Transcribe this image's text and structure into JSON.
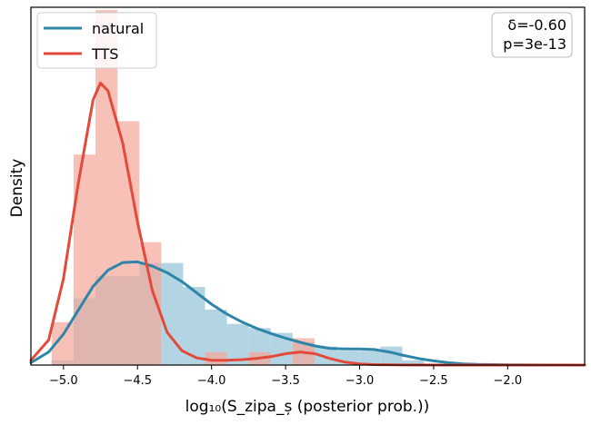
{
  "chart_data": {
    "type": "histogram+kde",
    "xlabel": "log₁₀(S_zipa_ș (posterior prob.))",
    "ylabel": "Density",
    "xlim": [
      -5.22,
      -1.48
    ],
    "ylim": [
      0,
      6.0
    ],
    "x_ticks": [
      -5.0,
      -4.5,
      -4.0,
      -3.5,
      -3.0,
      -2.5,
      -2.0
    ],
    "x_tick_labels": [
      "−5.0",
      "−4.5",
      "−4.0",
      "−3.5",
      "−3.0",
      "−2.5",
      "−2.0"
    ],
    "grid": false,
    "legend_position": "top-left",
    "annotation": {
      "lines": [
        "δ=-0.60",
        "p=3e-13"
      ],
      "position": "top-right"
    },
    "series": [
      {
        "name": "natural",
        "color": "#2e85a8",
        "hist_color": "#a9cfdf",
        "bin_width": 0.148,
        "hist": [
          {
            "x0": -5.08,
            "density": 0.08
          },
          {
            "x0": -4.932,
            "density": 1.12
          },
          {
            "x0": -4.784,
            "density": 1.49
          },
          {
            "x0": -4.636,
            "density": 1.49
          },
          {
            "x0": -4.488,
            "density": 1.71
          },
          {
            "x0": -4.34,
            "density": 1.71
          },
          {
            "x0": -4.192,
            "density": 1.31
          },
          {
            "x0": -4.044,
            "density": 0.93
          },
          {
            "x0": -3.896,
            "density": 0.69
          },
          {
            "x0": -3.748,
            "density": 0.62
          },
          {
            "x0": -3.6,
            "density": 0.54
          },
          {
            "x0": -3.452,
            "density": 0.38
          },
          {
            "x0": -3.304,
            "density": 0.31
          },
          {
            "x0": -3.156,
            "density": 0.24
          },
          {
            "x0": -3.008,
            "density": 0.24
          },
          {
            "x0": -2.86,
            "density": 0.31
          },
          {
            "x0": -2.712,
            "density": 0.08
          }
        ],
        "kde": [
          [
            -5.22,
            0.04
          ],
          [
            -5.1,
            0.22
          ],
          [
            -5.0,
            0.52
          ],
          [
            -4.9,
            0.92
          ],
          [
            -4.8,
            1.32
          ],
          [
            -4.7,
            1.59
          ],
          [
            -4.6,
            1.72
          ],
          [
            -4.5,
            1.73
          ],
          [
            -4.4,
            1.66
          ],
          [
            -4.3,
            1.55
          ],
          [
            -4.2,
            1.4
          ],
          [
            -4.1,
            1.21
          ],
          [
            -4.0,
            1.02
          ],
          [
            -3.9,
            0.86
          ],
          [
            -3.8,
            0.73
          ],
          [
            -3.7,
            0.62
          ],
          [
            -3.6,
            0.53
          ],
          [
            -3.5,
            0.45
          ],
          [
            -3.4,
            0.38
          ],
          [
            -3.3,
            0.32
          ],
          [
            -3.2,
            0.28
          ],
          [
            -3.1,
            0.27
          ],
          [
            -3.0,
            0.27
          ],
          [
            -2.9,
            0.26
          ],
          [
            -2.8,
            0.22
          ],
          [
            -2.7,
            0.16
          ],
          [
            -2.6,
            0.11
          ],
          [
            -2.5,
            0.07
          ],
          [
            -2.4,
            0.04
          ],
          [
            -2.3,
            0.02
          ],
          [
            -2.2,
            0.01
          ],
          [
            -2.0,
            0.005
          ],
          [
            -1.8,
            0.002
          ],
          [
            -1.48,
            0.0
          ]
        ]
      },
      {
        "name": "TTS",
        "color": "#e34a3b",
        "hist_color": "#f4a69a",
        "bin_width": 0.148,
        "hist": [
          {
            "x0": -5.08,
            "density": 0.72
          },
          {
            "x0": -4.932,
            "density": 3.53
          },
          {
            "x0": -4.784,
            "density": 5.95
          },
          {
            "x0": -4.636,
            "density": 4.09
          },
          {
            "x0": -4.488,
            "density": 2.06
          },
          {
            "x0": -4.34,
            "density": 0.0
          },
          {
            "x0": -4.192,
            "density": 0.0
          },
          {
            "x0": -4.044,
            "density": 0.22
          },
          {
            "x0": -3.896,
            "density": 0.0
          },
          {
            "x0": -3.748,
            "density": 0.22
          },
          {
            "x0": -3.6,
            "density": 0.0
          },
          {
            "x0": -3.452,
            "density": 0.45
          },
          {
            "x0": -3.304,
            "density": 0.0
          }
        ],
        "kde": [
          [
            -5.22,
            0.08
          ],
          [
            -5.1,
            0.42
          ],
          [
            -5.0,
            1.45
          ],
          [
            -4.9,
            3.05
          ],
          [
            -4.8,
            4.45
          ],
          [
            -4.75,
            4.73
          ],
          [
            -4.7,
            4.6
          ],
          [
            -4.6,
            3.72
          ],
          [
            -4.5,
            2.4
          ],
          [
            -4.4,
            1.25
          ],
          [
            -4.3,
            0.55
          ],
          [
            -4.2,
            0.24
          ],
          [
            -4.1,
            0.12
          ],
          [
            -4.0,
            0.08
          ],
          [
            -3.9,
            0.08
          ],
          [
            -3.8,
            0.09
          ],
          [
            -3.7,
            0.11
          ],
          [
            -3.6,
            0.14
          ],
          [
            -3.5,
            0.19
          ],
          [
            -3.4,
            0.22
          ],
          [
            -3.3,
            0.19
          ],
          [
            -3.2,
            0.11
          ],
          [
            -3.1,
            0.05
          ],
          [
            -3.0,
            0.02
          ],
          [
            -2.9,
            0.008
          ],
          [
            -2.7,
            0.002
          ],
          [
            -2.4,
            0.0
          ],
          [
            -1.48,
            0.0
          ]
        ]
      }
    ]
  }
}
